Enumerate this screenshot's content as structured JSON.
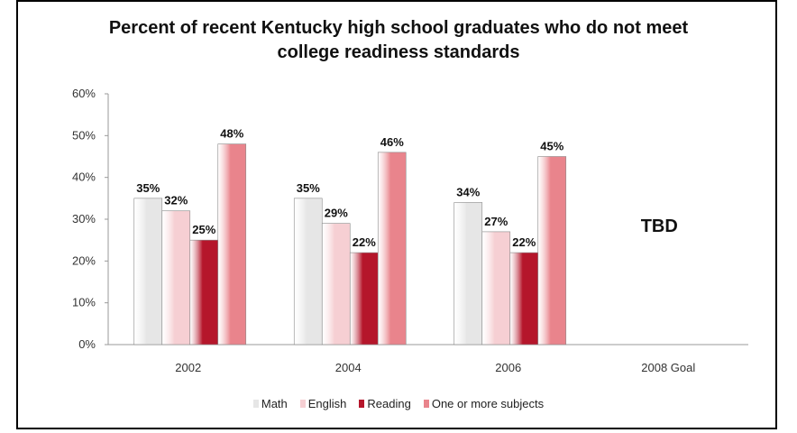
{
  "chart_data": {
    "type": "bar",
    "title_lines": [
      "Percent of recent Kentucky high school graduates who do not meet",
      "college readiness standards"
    ],
    "categories": [
      "2002",
      "2004",
      "2006",
      "2008 Goal"
    ],
    "series": [
      {
        "name": "Math",
        "values": [
          35,
          35,
          34,
          null
        ],
        "labels": [
          "35%",
          "35%",
          "34%",
          ""
        ],
        "color": "#e6e6e6"
      },
      {
        "name": "English",
        "values": [
          32,
          29,
          27,
          null
        ],
        "labels": [
          "32%",
          "29%",
          "27%",
          ""
        ],
        "color": "#f6cfd3"
      },
      {
        "name": "Reading",
        "values": [
          25,
          22,
          22,
          null
        ],
        "labels": [
          "25%",
          "22%",
          "22%",
          ""
        ],
        "color": "#b5162b"
      },
      {
        "name": "One or more subjects",
        "values": [
          48,
          46,
          45,
          null
        ],
        "labels": [
          "48%",
          "46%",
          "45%",
          ""
        ],
        "color": "#e9848c"
      }
    ],
    "yticks": [
      "0%",
      "10%",
      "20%",
      "30%",
      "40%",
      "50%",
      "60%"
    ],
    "ylim": [
      0,
      60
    ],
    "annotation": "TBD",
    "legend_position": "bottom",
    "grid": false
  }
}
